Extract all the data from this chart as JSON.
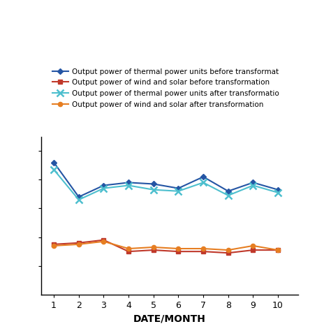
{
  "x": [
    1,
    2,
    3,
    4,
    5,
    6,
    7,
    8,
    9,
    10
  ],
  "thermal_before": [
    92,
    68,
    76,
    78,
    77,
    74,
    82,
    72,
    78,
    73
  ],
  "thermal_after": [
    87,
    66,
    74,
    76,
    73,
    72,
    78,
    69,
    76,
    71
  ],
  "wind_solar_before": [
    35,
    36,
    38,
    30,
    31,
    30,
    30,
    29,
    31,
    31
  ],
  "wind_solar_after": [
    34,
    35,
    37,
    32,
    33,
    32,
    32,
    31,
    34,
    31
  ],
  "color_thermal_before": "#2455a4",
  "color_thermal_after": "#4dbfce",
  "color_wind_before": "#c0392b",
  "color_wind_after": "#e67e22",
  "legend_thermal_before": "Output power of thermal power units before transformat",
  "legend_wind_before": "Output power of wind and solar before transformation",
  "legend_thermal_after": "Output power of thermal power units after transformatio",
  "legend_wind_after": "Output power of wind and solar after transformation",
  "xlabel": "DATE/MONTH",
  "ylim": [
    0,
    110
  ],
  "xlim": [
    0.5,
    10.8
  ],
  "xticks": [
    1,
    2,
    3,
    4,
    5,
    6,
    7,
    8,
    9,
    10
  ]
}
